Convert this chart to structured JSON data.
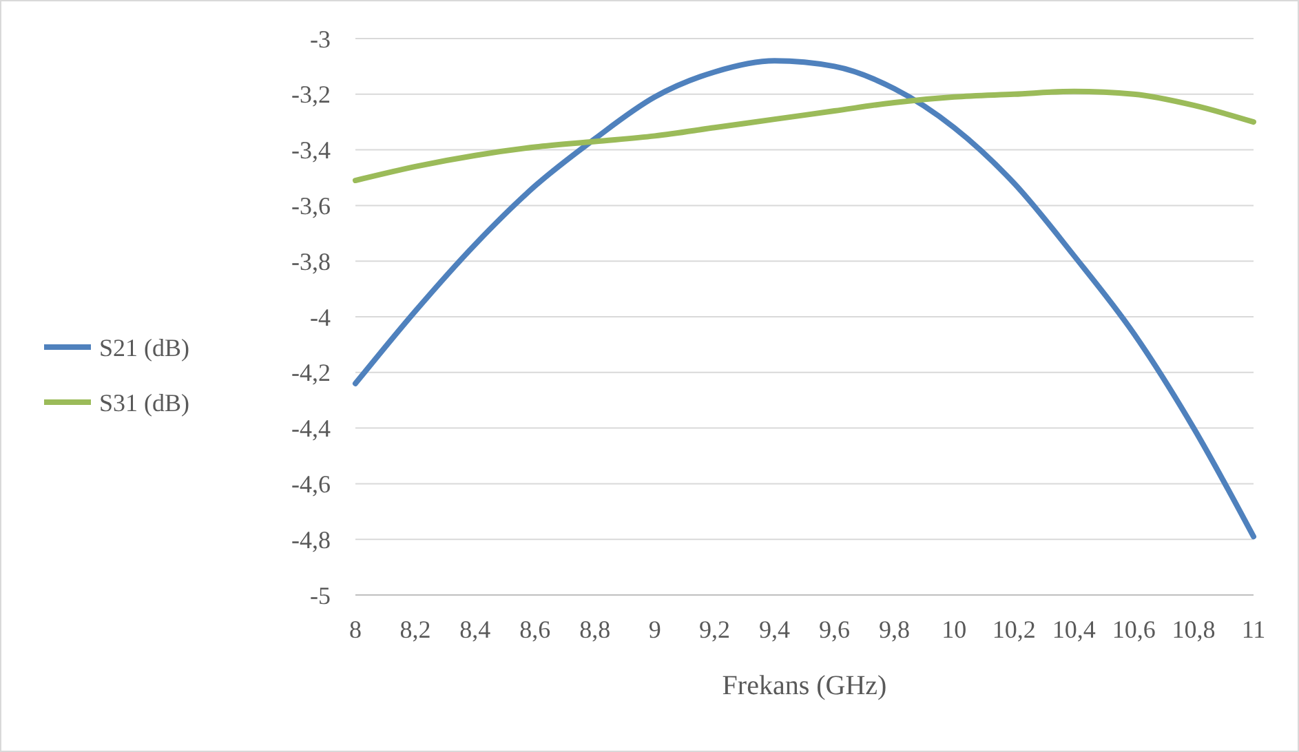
{
  "chart_data": {
    "type": "line",
    "xlabel": "Frekans (GHz)",
    "x": [
      8,
      8.2,
      8.4,
      8.6,
      8.8,
      9,
      9.2,
      9.4,
      9.6,
      9.8,
      10,
      10.2,
      10.4,
      10.6,
      10.8,
      11
    ],
    "series": [
      {
        "name": "S21 (dB)",
        "color": "#4f81bd",
        "values": [
          -4.24,
          -3.98,
          -3.74,
          -3.53,
          -3.36,
          -3.21,
          -3.12,
          -3.08,
          -3.1,
          -3.18,
          -3.32,
          -3.52,
          -3.78,
          -4.06,
          -4.4,
          -4.79
        ]
      },
      {
        "name": "S31 (dB)",
        "color": "#9bbb59",
        "values": [
          -3.51,
          -3.46,
          -3.42,
          -3.39,
          -3.37,
          -3.35,
          -3.32,
          -3.29,
          -3.26,
          -3.23,
          -3.21,
          -3.2,
          -3.19,
          -3.2,
          -3.24,
          -3.3
        ]
      }
    ],
    "xlim": [
      8,
      11
    ],
    "xticks": [
      8,
      {
        "value": 8.2,
        "label": "8,2"
      },
      {
        "value": 8.4,
        "label": "8,4"
      },
      {
        "value": 8.6,
        "label": "8,6"
      },
      {
        "value": 8.8,
        "label": "8,8"
      },
      9,
      {
        "value": 9.2,
        "label": "9,2"
      },
      {
        "value": 9.4,
        "label": "9,4"
      },
      {
        "value": 9.6,
        "label": "9,6"
      },
      {
        "value": 9.8,
        "label": "9,8"
      },
      10,
      {
        "value": 10.2,
        "label": "10,2"
      },
      {
        "value": 10.4,
        "label": "10,4"
      },
      {
        "value": 10.6,
        "label": "10,6"
      },
      {
        "value": 10.8,
        "label": "10,8"
      },
      11
    ],
    "ylim": [
      -5,
      -3
    ],
    "yticks": [
      -5,
      {
        "value": -4.8,
        "label": "-4,8"
      },
      {
        "value": -4.6,
        "label": "-4,6"
      },
      {
        "value": -4.4,
        "label": "-4,4"
      },
      {
        "value": -4.2,
        "label": "-4,2"
      },
      -4,
      {
        "value": -3.8,
        "label": "-3,8"
      },
      {
        "value": -3.6,
        "label": "-3,6"
      },
      {
        "value": -3.4,
        "label": "-3,4"
      },
      {
        "value": -3.2,
        "label": "-3,2"
      },
      -3
    ],
    "grid": "y",
    "legend": "left",
    "marker": "none",
    "line_style": "solid"
  }
}
